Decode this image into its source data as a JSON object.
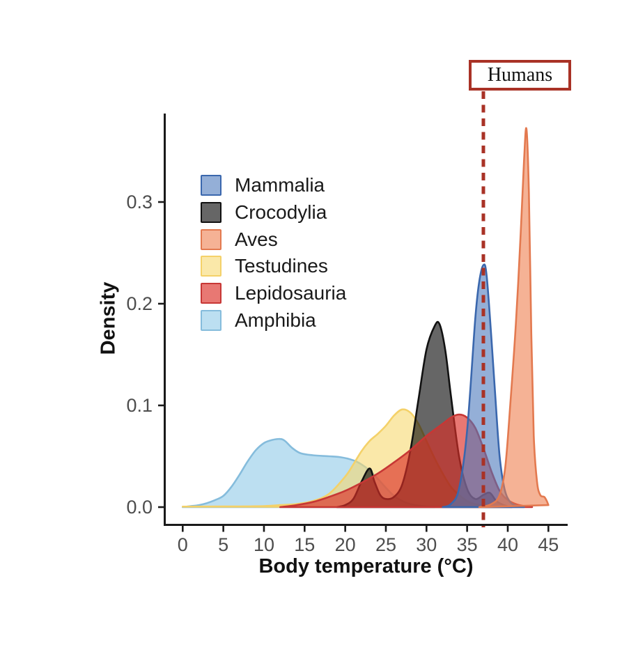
{
  "annotation": {
    "label": "Humans",
    "x_value": 37
  },
  "colors": {
    "axis": "#1a1a1a",
    "tick_label": "#4d4d4d",
    "annotation_box": "#a93226"
  },
  "chart_data": {
    "type": "area",
    "subtype": "density",
    "title": "",
    "xlabel": "Body temperature (°C)",
    "ylabel": "Density",
    "xlim": [
      0,
      45
    ],
    "ylim": [
      0,
      0.387
    ],
    "grid": false,
    "legend_position": "inside-top-left",
    "x_ticks": [
      {
        "label": "0",
        "value": 0
      },
      {
        "label": "5",
        "value": 5
      },
      {
        "label": "10",
        "value": 10
      },
      {
        "label": "15",
        "value": 15
      },
      {
        "label": "20",
        "value": 20
      },
      {
        "label": "25",
        "value": 25
      },
      {
        "label": "30",
        "value": 30
      },
      {
        "label": "35",
        "value": 35
      },
      {
        "label": "40",
        "value": 40
      },
      {
        "label": "45",
        "value": 45
      }
    ],
    "y_ticks": [
      {
        "label": "0.0",
        "value": 0.0
      },
      {
        "label": "0.1",
        "value": 0.1
      },
      {
        "label": "0.2",
        "value": 0.2
      },
      {
        "label": "0.3",
        "value": 0.3
      }
    ],
    "human_line": {
      "x": 37,
      "color": "#a93226",
      "style": "dashed",
      "label": "Humans"
    },
    "draw_order": [
      "Amphibia",
      "Testudines",
      "Crocodylia",
      "Lepidosauria",
      "Mammalia",
      "Aves"
    ],
    "series": [
      {
        "name": "Mammalia",
        "stroke": "#3a67ad",
        "fill": "#4d79bc",
        "fill_opacity": 0.6,
        "peak": {
          "x": 37,
          "density": 0.238
        },
        "points": [
          [
            32,
            0
          ],
          [
            33,
            0.003
          ],
          [
            34,
            0.018
          ],
          [
            35,
            0.075
          ],
          [
            36,
            0.185
          ],
          [
            36.5,
            0.222
          ],
          [
            37,
            0.238
          ],
          [
            37.4,
            0.228
          ],
          [
            38,
            0.165
          ],
          [
            38.5,
            0.105
          ],
          [
            39,
            0.05
          ],
          [
            39.6,
            0.018
          ],
          [
            40.3,
            0.005
          ],
          [
            41.2,
            0.001
          ],
          [
            42,
            0
          ]
        ]
      },
      {
        "name": "Crocodylia",
        "stroke": "#111111",
        "fill": "#000000",
        "fill_opacity": 0.6,
        "peak": {
          "x": 31.5,
          "density": 0.18
        },
        "points": [
          [
            19,
            0
          ],
          [
            20,
            0.002
          ],
          [
            21,
            0.008
          ],
          [
            22,
            0.025
          ],
          [
            23,
            0.038
          ],
          [
            23.6,
            0.025
          ],
          [
            24.3,
            0.012
          ],
          [
            25,
            0.008
          ],
          [
            26,
            0.01
          ],
          [
            27,
            0.022
          ],
          [
            28,
            0.055
          ],
          [
            29,
            0.105
          ],
          [
            30,
            0.155
          ],
          [
            31,
            0.178
          ],
          [
            31.6,
            0.18
          ],
          [
            32.3,
            0.155
          ],
          [
            33,
            0.11
          ],
          [
            34,
            0.05
          ],
          [
            35,
            0.018
          ],
          [
            36,
            0.008
          ],
          [
            37,
            0.012
          ],
          [
            37.8,
            0.014
          ],
          [
            38.6,
            0.006
          ],
          [
            39.5,
            0.002
          ],
          [
            40.5,
            0
          ]
        ]
      },
      {
        "name": "Aves",
        "stroke": "#e3794f",
        "fill": "#ee7f4f",
        "fill_opacity": 0.6,
        "peak": {
          "x": 42.3,
          "density": 0.372
        },
        "points": [
          [
            36.5,
            0
          ],
          [
            38,
            0.003
          ],
          [
            39,
            0.012
          ],
          [
            39.7,
            0.04
          ],
          [
            40.3,
            0.1
          ],
          [
            41,
            0.18
          ],
          [
            41.6,
            0.27
          ],
          [
            42,
            0.34
          ],
          [
            42.3,
            0.372
          ],
          [
            42.6,
            0.31
          ],
          [
            42.9,
            0.17
          ],
          [
            43.2,
            0.07
          ],
          [
            43.6,
            0.025
          ],
          [
            44,
            0.012
          ],
          [
            44.5,
            0.01
          ],
          [
            44.8,
            0.006
          ],
          [
            45,
            0.002
          ]
        ]
      },
      {
        "name": "Testudines",
        "stroke": "#f4d169",
        "fill": "#f6d970",
        "fill_opacity": 0.6,
        "peak": {
          "x": 27,
          "density": 0.096
        },
        "points": [
          [
            0,
            0.0005
          ],
          [
            5,
            0.0006
          ],
          [
            10,
            0.001
          ],
          [
            12,
            0.002
          ],
          [
            14,
            0.003
          ],
          [
            16,
            0.006
          ],
          [
            18,
            0.013
          ],
          [
            20,
            0.03
          ],
          [
            21,
            0.042
          ],
          [
            22,
            0.055
          ],
          [
            23,
            0.065
          ],
          [
            24,
            0.072
          ],
          [
            25,
            0.08
          ],
          [
            26,
            0.09
          ],
          [
            27,
            0.096
          ],
          [
            28,
            0.093
          ],
          [
            29,
            0.082
          ],
          [
            30,
            0.065
          ],
          [
            31,
            0.048
          ],
          [
            32,
            0.033
          ],
          [
            33,
            0.02
          ],
          [
            34,
            0.012
          ],
          [
            35,
            0.006
          ],
          [
            36,
            0.003
          ],
          [
            37.5,
            0.001
          ],
          [
            39,
            0
          ]
        ]
      },
      {
        "name": "Lepidosauria",
        "stroke": "#c73735",
        "fill": "#dc2f28",
        "fill_opacity": 0.65,
        "peak": {
          "x": 34,
          "density": 0.091
        },
        "points": [
          [
            12,
            0
          ],
          [
            14,
            0.002
          ],
          [
            16,
            0.005
          ],
          [
            18,
            0.01
          ],
          [
            20,
            0.016
          ],
          [
            22,
            0.024
          ],
          [
            24,
            0.033
          ],
          [
            26,
            0.044
          ],
          [
            28,
            0.056
          ],
          [
            30,
            0.07
          ],
          [
            32,
            0.082
          ],
          [
            33,
            0.088
          ],
          [
            34,
            0.091
          ],
          [
            35,
            0.088
          ],
          [
            36,
            0.078
          ],
          [
            37,
            0.058
          ],
          [
            38,
            0.035
          ],
          [
            39,
            0.016
          ],
          [
            40,
            0.007
          ],
          [
            41,
            0.003
          ],
          [
            42,
            0.001
          ],
          [
            43,
            0
          ]
        ]
      },
      {
        "name": "Amphibia",
        "stroke": "#85bcdc",
        "fill": "#8fcae8",
        "fill_opacity": 0.6,
        "peak": {
          "x": 12,
          "density": 0.067
        },
        "points": [
          [
            0,
            0
          ],
          [
            1,
            0.001
          ],
          [
            2,
            0.002
          ],
          [
            3,
            0.004
          ],
          [
            4,
            0.007
          ],
          [
            5,
            0.011
          ],
          [
            6,
            0.02
          ],
          [
            7,
            0.032
          ],
          [
            8,
            0.045
          ],
          [
            9,
            0.056
          ],
          [
            10,
            0.063
          ],
          [
            11,
            0.066
          ],
          [
            12,
            0.067
          ],
          [
            12.6,
            0.065
          ],
          [
            13.5,
            0.058
          ],
          [
            14.5,
            0.053
          ],
          [
            16,
            0.051
          ],
          [
            18,
            0.05
          ],
          [
            19.5,
            0.049
          ],
          [
            21,
            0.046
          ],
          [
            22,
            0.042
          ],
          [
            23,
            0.036
          ],
          [
            24,
            0.028
          ],
          [
            25,
            0.019
          ],
          [
            26,
            0.011
          ],
          [
            27,
            0.006
          ],
          [
            28,
            0.003
          ],
          [
            29.5,
            0.001
          ],
          [
            31,
            0
          ]
        ]
      }
    ]
  }
}
